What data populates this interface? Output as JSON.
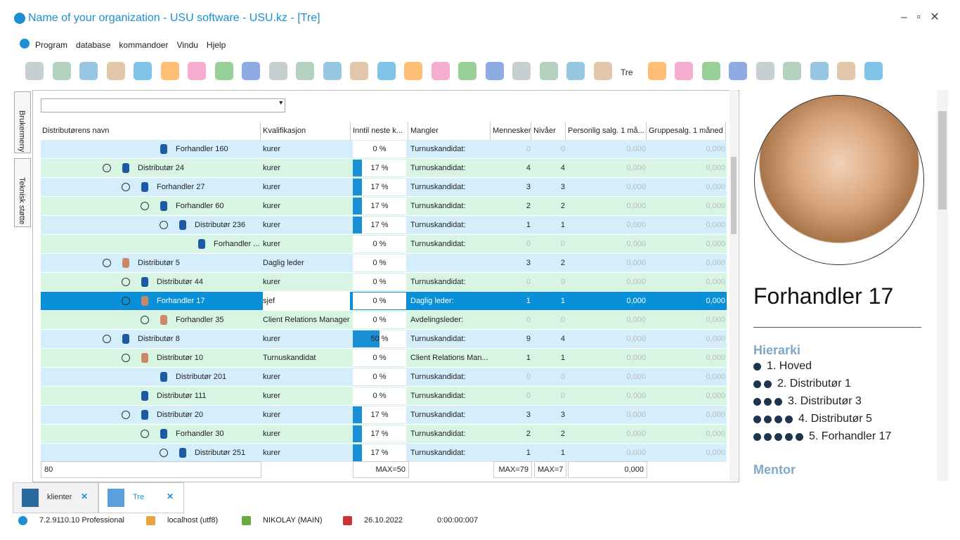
{
  "window": {
    "title": "Name of your organization - USU software - USU.kz - [Tre]"
  },
  "menu": [
    "Program",
    "database",
    "kommandoer",
    "Vindu",
    "Hjelp"
  ],
  "toolbar": {
    "view_label": "Tre"
  },
  "side_tabs": [
    "Brukermeny",
    "Teknisk støtte"
  ],
  "table": {
    "columns": [
      "Distributørens navn",
      "Kvalifikasjon",
      "Inntil neste k...",
      "Mangler",
      "Mennesker",
      "Nivåer",
      "Personlig salg. 1 må...",
      "Gruppesalg. 1 måned"
    ],
    "rows": [
      {
        "name": "Forhandler 160",
        "qual": "kurer",
        "progress": {
          "value": 0,
          "label": "0 %"
        },
        "missing": "Turnuskandidat:",
        "people": 0,
        "levels": 0,
        "personal": "0,000",
        "group": "0,000"
      },
      {
        "name": "Distributør 24",
        "qual": "kurer",
        "progress": {
          "value": 17,
          "label": "17 %"
        },
        "missing": "Turnuskandidat:",
        "people": 4,
        "levels": 4,
        "personal": "0,000",
        "group": "0,000"
      },
      {
        "name": "Forhandler 27",
        "qual": "kurer",
        "progress": {
          "value": 17,
          "label": "17 %"
        },
        "missing": "Turnuskandidat:",
        "people": 3,
        "levels": 3,
        "personal": "0,000",
        "group": "0,000"
      },
      {
        "name": "Forhandler 60",
        "qual": "kurer",
        "progress": {
          "value": 17,
          "label": "17 %"
        },
        "missing": "Turnuskandidat:",
        "people": 2,
        "levels": 2,
        "personal": "0,000",
        "group": "0,000"
      },
      {
        "name": "Distributør 236",
        "qual": "kurer",
        "progress": {
          "value": 17,
          "label": "17 %"
        },
        "missing": "Turnuskandidat:",
        "people": 1,
        "levels": 1,
        "personal": "0,000",
        "group": "0,000"
      },
      {
        "name": "Forhandler ...",
        "qual": "kurer",
        "progress": {
          "value": 0,
          "label": "0 %"
        },
        "missing": "Turnuskandidat:",
        "people": 0,
        "levels": 0,
        "personal": "0,000",
        "group": "0,000"
      },
      {
        "name": "Distributør 5",
        "qual": "Daglig leder",
        "progress": {
          "value": 0,
          "label": "0 %"
        },
        "missing": null,
        "people": 3,
        "levels": 2,
        "personal": "0,000",
        "group": "0,000"
      },
      {
        "name": "Distributør 44",
        "qual": "kurer",
        "progress": {
          "value": 0,
          "label": "0 %"
        },
        "missing": "Turnuskandidat:",
        "people": 0,
        "levels": 0,
        "personal": "0,000",
        "group": "0,000"
      },
      {
        "name": "Forhandler 17",
        "qual": "sjef",
        "progress": {
          "value": 0,
          "label": "0 %"
        },
        "missing": "Daglig leder:",
        "people": 1,
        "levels": 1,
        "personal": "0,000",
        "group": "0,000"
      },
      {
        "name": "Forhandler 35",
        "qual": "Client Relations Manager",
        "progress": {
          "value": 0,
          "label": "0 %"
        },
        "missing": "Avdelingsleder:",
        "people": 0,
        "levels": 0,
        "personal": "0,000",
        "group": "0,000"
      },
      {
        "name": "Distributør 8",
        "qual": "kurer",
        "progress": {
          "value": 50,
          "label": "50 %"
        },
        "missing": "Turnuskandidat:",
        "people": 9,
        "levels": 4,
        "personal": "0,000",
        "group": "0,000"
      },
      {
        "name": "Distributør 10",
        "qual": "Turnuskandidat",
        "progress": {
          "value": 0,
          "label": "0 %"
        },
        "missing": "Client Relations Man...",
        "people": 1,
        "levels": 1,
        "personal": "0,000",
        "group": "0,000"
      },
      {
        "name": "Distributør 201",
        "qual": "kurer",
        "progress": {
          "value": 0,
          "label": "0 %"
        },
        "missing": "Turnuskandidat:",
        "people": 0,
        "levels": 0,
        "personal": "0,000",
        "group": "0,000"
      },
      {
        "name": "Distributør 111",
        "qual": "kurer",
        "progress": {
          "value": 0,
          "label": "0 %"
        },
        "missing": "Turnuskandidat:",
        "people": 0,
        "levels": 0,
        "personal": "0,000",
        "group": "0,000"
      },
      {
        "name": "Distributør 20",
        "qual": "kurer",
        "progress": {
          "value": 17,
          "label": "17 %"
        },
        "missing": "Turnuskandidat:",
        "people": 3,
        "levels": 3,
        "personal": "0,000",
        "group": "0,000"
      },
      {
        "name": "Forhandler 30",
        "qual": "kurer",
        "progress": {
          "value": 17,
          "label": "17 %"
        },
        "missing": "Turnuskandidat:",
        "people": 2,
        "levels": 2,
        "personal": "0,000",
        "group": "0,000"
      },
      {
        "name": "Distributør 251",
        "qual": "kurer",
        "progress": {
          "value": 17,
          "label": "17 %"
        },
        "missing": "Turnuskandidat:",
        "people": 1,
        "levels": 1,
        "personal": "0,000",
        "group": "0,000"
      }
    ],
    "footer": {
      "count": "80",
      "progress": "MAX=50",
      "people": "MAX=79",
      "levels": "MAX=7",
      "personal": "0,000"
    }
  },
  "details": {
    "name": "Forhandler 17",
    "hierarchy_title": "Hierarki",
    "hierarchy": [
      "1. Hoved",
      "2. Distributør 1",
      "3. Distributør 3",
      "4. Distributør 5",
      "5. Forhandler 17"
    ],
    "mentor_title": "Mentor"
  },
  "tabs": [
    "klienter",
    "Tre"
  ],
  "status": [
    "7.2.9110.10 Professional",
    "localhost (utf8)",
    "NIKOLAY (MAIN)",
    "26.10.2022",
    "0:00:00:007"
  ]
}
